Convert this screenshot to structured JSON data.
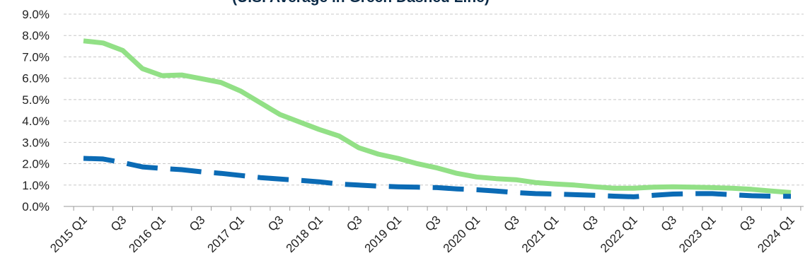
{
  "chart_data": {
    "type": "line",
    "title": "(U.S. Average in Green Dashed Line)",
    "x": [
      "2015 Q1",
      "Q2",
      "Q3",
      "Q4",
      "2016 Q1",
      "Q2",
      "Q3",
      "Q4",
      "2017 Q1",
      "Q2",
      "Q3",
      "Q4",
      "2018 Q1",
      "Q2",
      "Q3",
      "Q4",
      "2019 Q1",
      "Q2",
      "Q3",
      "Q4",
      "2020 Q1",
      "Q2",
      "Q3",
      "Q4",
      "2021 Q1",
      "Q2",
      "Q3",
      "Q4",
      "2022 Q1",
      "Q2",
      "Q3",
      "Q4",
      "2023 Q1",
      "Q2",
      "Q3",
      "Q4",
      "2024 Q1"
    ],
    "x_tick_labels": [
      "2015 Q1",
      "",
      "Q3",
      "",
      "2016 Q1",
      "",
      "Q3",
      "",
      "2017 Q1",
      "",
      "Q3",
      "",
      "2018 Q1",
      "",
      "Q3",
      "",
      "2019 Q1",
      "",
      "Q3",
      "",
      "2020 Q1",
      "",
      "Q3",
      "",
      "2021 Q1",
      "",
      "Q3",
      "",
      "2022 Q1",
      "",
      "Q3",
      "",
      "2023 Q1",
      "",
      "Q3",
      "",
      "2024 Q1"
    ],
    "series": [
      {
        "color": "#92e086",
        "style": "solid",
        "values": [
          7.75,
          7.65,
          7.3,
          6.45,
          6.12,
          6.15,
          5.98,
          5.8,
          5.4,
          4.85,
          4.3,
          3.95,
          3.6,
          3.3,
          2.75,
          2.45,
          2.25,
          2.0,
          1.8,
          1.55,
          1.38,
          1.3,
          1.25,
          1.12,
          1.05,
          1.0,
          0.92,
          0.85,
          0.85,
          0.9,
          0.92,
          0.9,
          0.88,
          0.85,
          0.8,
          0.72,
          0.65
        ]
      },
      {
        "color": "#0b6bb5",
        "style": "dashed",
        "values": [
          2.25,
          2.22,
          2.05,
          1.85,
          1.78,
          1.72,
          1.62,
          1.55,
          1.45,
          1.35,
          1.28,
          1.22,
          1.15,
          1.05,
          1.0,
          0.95,
          0.92,
          0.9,
          0.88,
          0.82,
          0.78,
          0.72,
          0.65,
          0.6,
          0.58,
          0.55,
          0.52,
          0.48,
          0.45,
          0.52,
          0.58,
          0.6,
          0.6,
          0.55,
          0.5,
          0.48,
          0.47
        ]
      }
    ],
    "y_tick_labels": [
      "0.0%",
      "1.0%",
      "2.0%",
      "3.0%",
      "4.0%",
      "5.0%",
      "6.0%",
      "7.0%",
      "8.0%",
      "9.0%"
    ],
    "ylim": [
      0,
      9
    ],
    "grid": true,
    "legend": "none"
  }
}
